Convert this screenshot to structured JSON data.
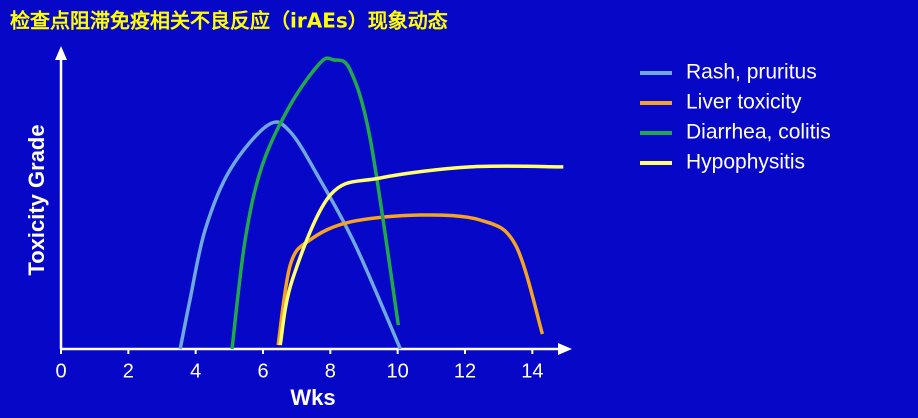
{
  "chart_data": {
    "type": "line",
    "title": "检查点阻滞免疫相关不良反应（irAEs）现象动态",
    "xlabel": "Wks",
    "ylabel": "Toxicity Grade",
    "xlim": [
      0,
      15
    ],
    "ylim": [
      0,
      100
    ],
    "xticks": [
      0,
      2,
      4,
      6,
      8,
      10,
      12,
      14
    ],
    "legend": "right",
    "series": [
      {
        "name": "Rash, pruritus",
        "color": "#6fa8dc",
        "x": [
          3.54,
          3.83,
          4.28,
          5.02,
          6.15,
          6.81,
          7.7,
          8.74,
          10.08
        ],
        "values": [
          0,
          16.4,
          39.8,
          59.9,
          74.9,
          72.6,
          56.5,
          34.8,
          0
        ]
      },
      {
        "name": "Liver toxicity",
        "color": "#f5a320",
        "x": [
          6.45,
          6.81,
          7.4,
          8.59,
          10.67,
          12.46,
          13.5,
          14.3
        ],
        "values": [
          1.3,
          28.1,
          36.5,
          42.5,
          44.8,
          43.1,
          34.8,
          5.0
        ]
      },
      {
        "name": "Diarrhea, colitis",
        "color": "#22a84a",
        "x": [
          5.08,
          5.47,
          5.98,
          6.81,
          7.7,
          8.09,
          8.59,
          9.19,
          10.02
        ],
        "values": [
          0,
          36.5,
          61.5,
          81.6,
          95.7,
          96.7,
          93.3,
          69.9,
          8.0
        ]
      },
      {
        "name": "Hypophysitis",
        "color": "#ffff70",
        "x": [
          6.51,
          6.87,
          8.0,
          9.48,
          12.16,
          14.92
        ],
        "values": [
          1.3,
          23.1,
          51.5,
          57.2,
          60.9,
          60.9
        ]
      }
    ]
  }
}
